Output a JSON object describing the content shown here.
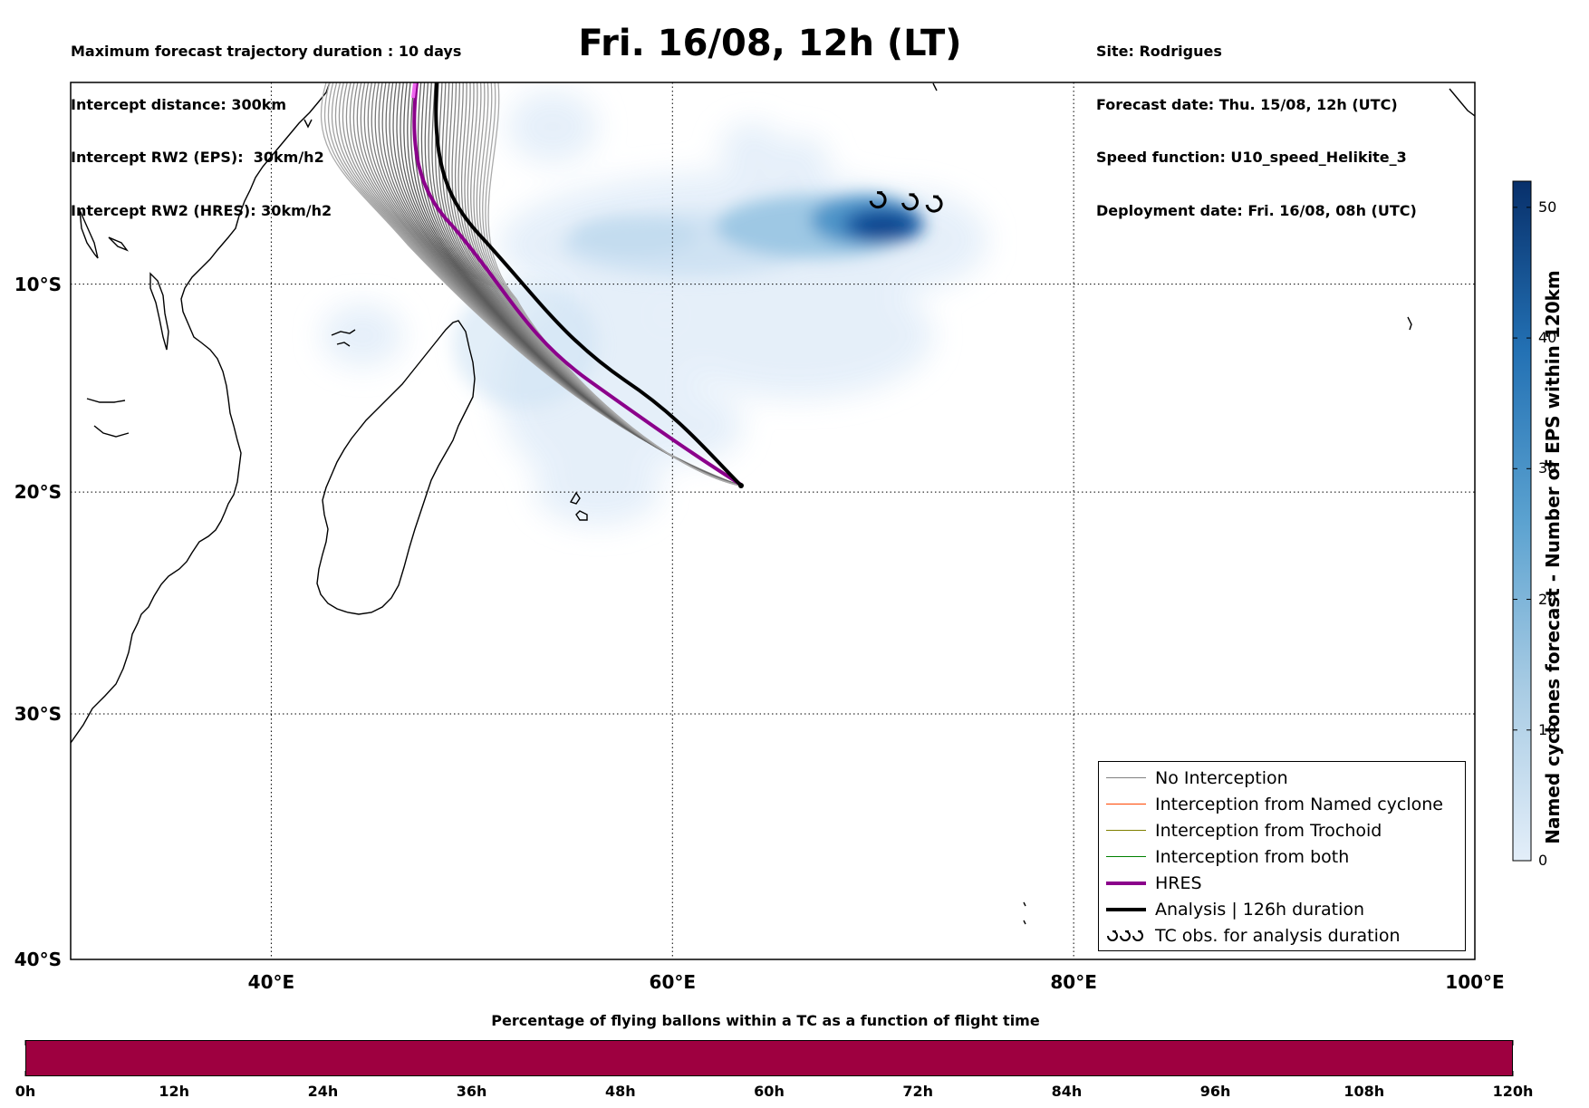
{
  "header_left": [
    "Maximum forecast trajectory duration : 10 days",
    "Intercept distance: 300km",
    "Intercept RW2 (EPS):  30km/h2",
    "Intercept RW2 (HRES): 30km/h2"
  ],
  "title": "Fri. 16/08, 12h (LT)",
  "header_right": [
    "Site: Rodrigues",
    "Forecast date: Thu. 15/08, 12h (UTC)",
    "Speed function: U10_speed_Helikite_3",
    "Deployment date: Fri. 16/08, 08h (UTC)"
  ],
  "map": {
    "lon_range": [
      30,
      100
    ],
    "lat_range": [
      -40,
      0
    ],
    "lat_ticks": [
      {
        "lat": -10,
        "label": "10°S"
      },
      {
        "lat": -20,
        "label": "20°S"
      },
      {
        "lat": -30,
        "label": "30°S"
      },
      {
        "lat": -40,
        "label": "40°S"
      }
    ],
    "lon_ticks": [
      {
        "lon": 40,
        "label": "40°E"
      },
      {
        "lon": 60,
        "label": "60°E"
      },
      {
        "lon": 80,
        "label": "80°E"
      },
      {
        "lon": 100,
        "label": "100°E"
      }
    ],
    "grid": "dotted",
    "release_site": {
      "lon": 63.4,
      "lat": -19.7
    },
    "tc_observations": [
      {
        "lon": 70.2,
        "lat": -5.8
      },
      {
        "lon": 71.8,
        "lat": -5.9
      },
      {
        "lon": 73.0,
        "lat": -6.0
      }
    ]
  },
  "colorbar": {
    "title": "Named cyclones forecast - Number of EPS within 120km",
    "range": [
      0,
      52
    ],
    "ticks": [
      0,
      10,
      20,
      30,
      40,
      50
    ],
    "color_low": "#e3eef9",
    "color_high": "#08306b"
  },
  "legend": [
    {
      "label": "No Interception",
      "color": "#808080",
      "style": "thin"
    },
    {
      "label": "Interception from Named cyclone",
      "color": "#ff4500",
      "style": "thin"
    },
    {
      "label": "Interception from Trochoid",
      "color": "#808000",
      "style": "thin"
    },
    {
      "label": "Interception from both",
      "color": "#008000",
      "style": "thin"
    },
    {
      "label": "HRES",
      "color": "#8b008b",
      "style": "thick"
    },
    {
      "label": "Analysis | 126h duration",
      "color": "#000000",
      "style": "thick"
    },
    {
      "label": "TC obs. for analysis duration",
      "color": "#000000",
      "style": "symbol"
    }
  ],
  "bottom": {
    "title": "Percentage of flying ballons within a TC as a function of flight time",
    "bar_color": "#9e0040",
    "ticks": [
      "0h",
      "12h",
      "24h",
      "36h",
      "48h",
      "60h",
      "72h",
      "84h",
      "96h",
      "108h",
      "120h"
    ]
  }
}
